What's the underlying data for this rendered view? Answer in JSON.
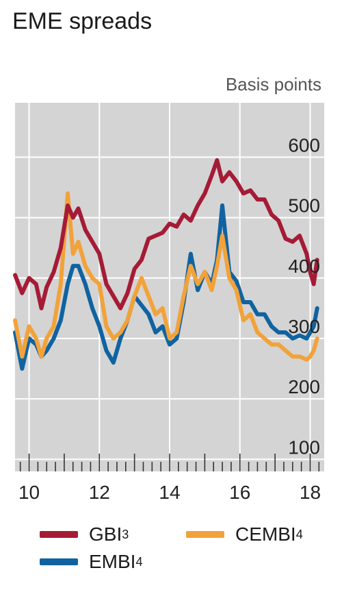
{
  "chart_data": {
    "type": "line",
    "title": "EME spreads",
    "unit_label": "Basis points",
    "x_tick_labels": [
      "10",
      "12",
      "14",
      "16",
      "18"
    ],
    "x_ticks": [
      2010,
      2012,
      2014,
      2016,
      2018
    ],
    "xlim": [
      2009.6,
      2018.4
    ],
    "y_ticks": [
      100,
      200,
      300,
      400,
      500,
      600
    ],
    "ylim": [
      80,
      690
    ],
    "grid": true,
    "legend_position": "bottom",
    "series": [
      {
        "name": "GBI",
        "footnote": "3",
        "color": "#a51b36",
        "x": [
          2009.6,
          2009.8,
          2010.0,
          2010.2,
          2010.35,
          2010.5,
          2010.7,
          2010.9,
          2011.1,
          2011.25,
          2011.4,
          2011.6,
          2011.8,
          2012.0,
          2012.2,
          2012.4,
          2012.6,
          2012.8,
          2013.0,
          2013.2,
          2013.4,
          2013.6,
          2013.8,
          2014.0,
          2014.2,
          2014.4,
          2014.6,
          2014.8,
          2015.0,
          2015.2,
          2015.35,
          2015.5,
          2015.7,
          2015.9,
          2016.1,
          2016.3,
          2016.5,
          2016.7,
          2016.9,
          2017.1,
          2017.3,
          2017.5,
          2017.7,
          2017.9,
          2018.0,
          2018.1,
          2018.2
        ],
        "values": [
          405,
          375,
          400,
          390,
          350,
          385,
          410,
          450,
          520,
          500,
          515,
          480,
          460,
          440,
          390,
          370,
          350,
          375,
          415,
          430,
          465,
          470,
          475,
          490,
          485,
          505,
          495,
          520,
          540,
          570,
          595,
          560,
          575,
          560,
          540,
          545,
          530,
          530,
          505,
          495,
          465,
          460,
          470,
          440,
          410,
          390,
          430
        ]
      },
      {
        "name": "EMBI",
        "footnote": "4",
        "color": "#1063a0",
        "x": [
          2009.6,
          2009.8,
          2010.0,
          2010.2,
          2010.35,
          2010.5,
          2010.7,
          2010.9,
          2011.1,
          2011.25,
          2011.4,
          2011.6,
          2011.8,
          2012.0,
          2012.2,
          2012.4,
          2012.6,
          2012.8,
          2013.0,
          2013.2,
          2013.4,
          2013.6,
          2013.8,
          2014.0,
          2014.2,
          2014.4,
          2014.6,
          2014.8,
          2015.0,
          2015.2,
          2015.35,
          2015.5,
          2015.7,
          2015.9,
          2016.1,
          2016.3,
          2016.5,
          2016.7,
          2016.9,
          2017.1,
          2017.3,
          2017.5,
          2017.7,
          2017.9,
          2018.0,
          2018.1,
          2018.2
        ],
        "values": [
          310,
          250,
          300,
          290,
          270,
          280,
          300,
          330,
          390,
          420,
          420,
          390,
          350,
          320,
          280,
          260,
          300,
          330,
          370,
          355,
          340,
          310,
          320,
          290,
          300,
          360,
          440,
          380,
          410,
          390,
          430,
          520,
          410,
          395,
          360,
          360,
          340,
          340,
          320,
          310,
          310,
          300,
          305,
          300,
          310,
          320,
          350
        ]
      },
      {
        "name": "CEMBI",
        "footnote": "4",
        "color": "#f2a23a",
        "x": [
          2009.6,
          2009.8,
          2010.0,
          2010.2,
          2010.35,
          2010.5,
          2010.7,
          2010.9,
          2011.1,
          2011.25,
          2011.4,
          2011.6,
          2011.8,
          2012.0,
          2012.2,
          2012.4,
          2012.6,
          2012.8,
          2013.0,
          2013.2,
          2013.4,
          2013.6,
          2013.8,
          2014.0,
          2014.2,
          2014.4,
          2014.6,
          2014.8,
          2015.0,
          2015.2,
          2015.35,
          2015.5,
          2015.7,
          2015.9,
          2016.1,
          2016.3,
          2016.5,
          2016.7,
          2016.9,
          2017.1,
          2017.3,
          2017.5,
          2017.7,
          2017.9,
          2018.0,
          2018.1,
          2018.2
        ],
        "values": [
          330,
          270,
          320,
          300,
          270,
          300,
          320,
          390,
          540,
          440,
          460,
          420,
          400,
          390,
          320,
          300,
          310,
          330,
          370,
          400,
          370,
          340,
          350,
          300,
          310,
          370,
          420,
          390,
          410,
          380,
          420,
          470,
          400,
          380,
          330,
          340,
          310,
          300,
          290,
          290,
          280,
          270,
          270,
          265,
          270,
          280,
          300
        ]
      }
    ]
  }
}
